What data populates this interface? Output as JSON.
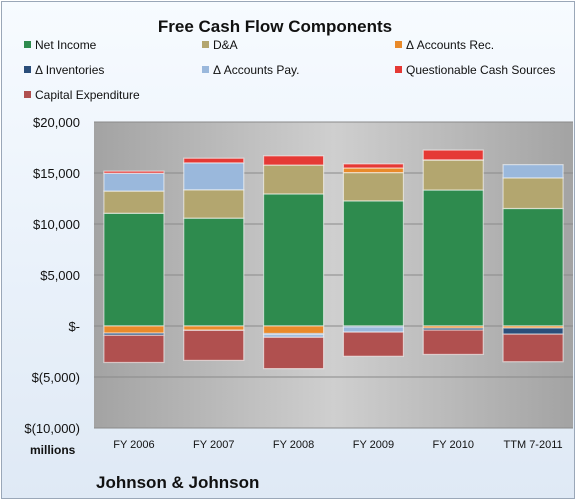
{
  "chart_data": {
    "type": "bar",
    "stacked": true,
    "title": "Free Cash Flow Components",
    "categories": [
      "FY 2006",
      "FY 2007",
      "FY 2008",
      "FY 2009",
      "FY 2010",
      "TTM 7-2011"
    ],
    "y_unit_label": "millions",
    "company_label": "Johnson & Johnson",
    "ylim": [
      -10000,
      20000
    ],
    "yticks": [
      20000,
      15000,
      10000,
      5000,
      0,
      -5000,
      -10000
    ],
    "ytick_labels": [
      "$20,000",
      "$15,000",
      "$10,000",
      "$5,000",
      "$-",
      "$(5,000)",
      "$(10,000)"
    ],
    "grid": true,
    "legend_position": "top",
    "series": [
      {
        "name": "Net Income",
        "color": "#2e8b4e",
        "values": [
          11053,
          10576,
          12949,
          12266,
          13334,
          11520
        ]
      },
      {
        "name": "D&A",
        "color": "#b3a66f",
        "values": [
          2177,
          2777,
          2832,
          2774,
          2939,
          3000
        ]
      },
      {
        "name": "Δ Accounts Rec.",
        "color": "#e98a2a",
        "values": [
          -699,
          -416,
          -737,
          453,
          -207,
          -200
        ]
      },
      {
        "name": "Δ Inventories",
        "color": "#2a4e7a",
        "values": [
          -210,
          -14,
          -101,
          -95,
          -196,
          -600
        ]
      },
      {
        "name": "Δ Accounts Pay.",
        "color": "#9ab8dc",
        "values": [
          1750,
          2642,
          -272,
          -507,
          20,
          1300
        ]
      },
      {
        "name": "Questionable Cash Sources",
        "color": "#e53935",
        "values": [
          200,
          450,
          900,
          400,
          950,
          0
        ]
      },
      {
        "name": "Capital Expenditure",
        "color": "#b0504f",
        "values": [
          -2666,
          -2942,
          -3066,
          -2365,
          -2384,
          -2700
        ]
      }
    ]
  }
}
